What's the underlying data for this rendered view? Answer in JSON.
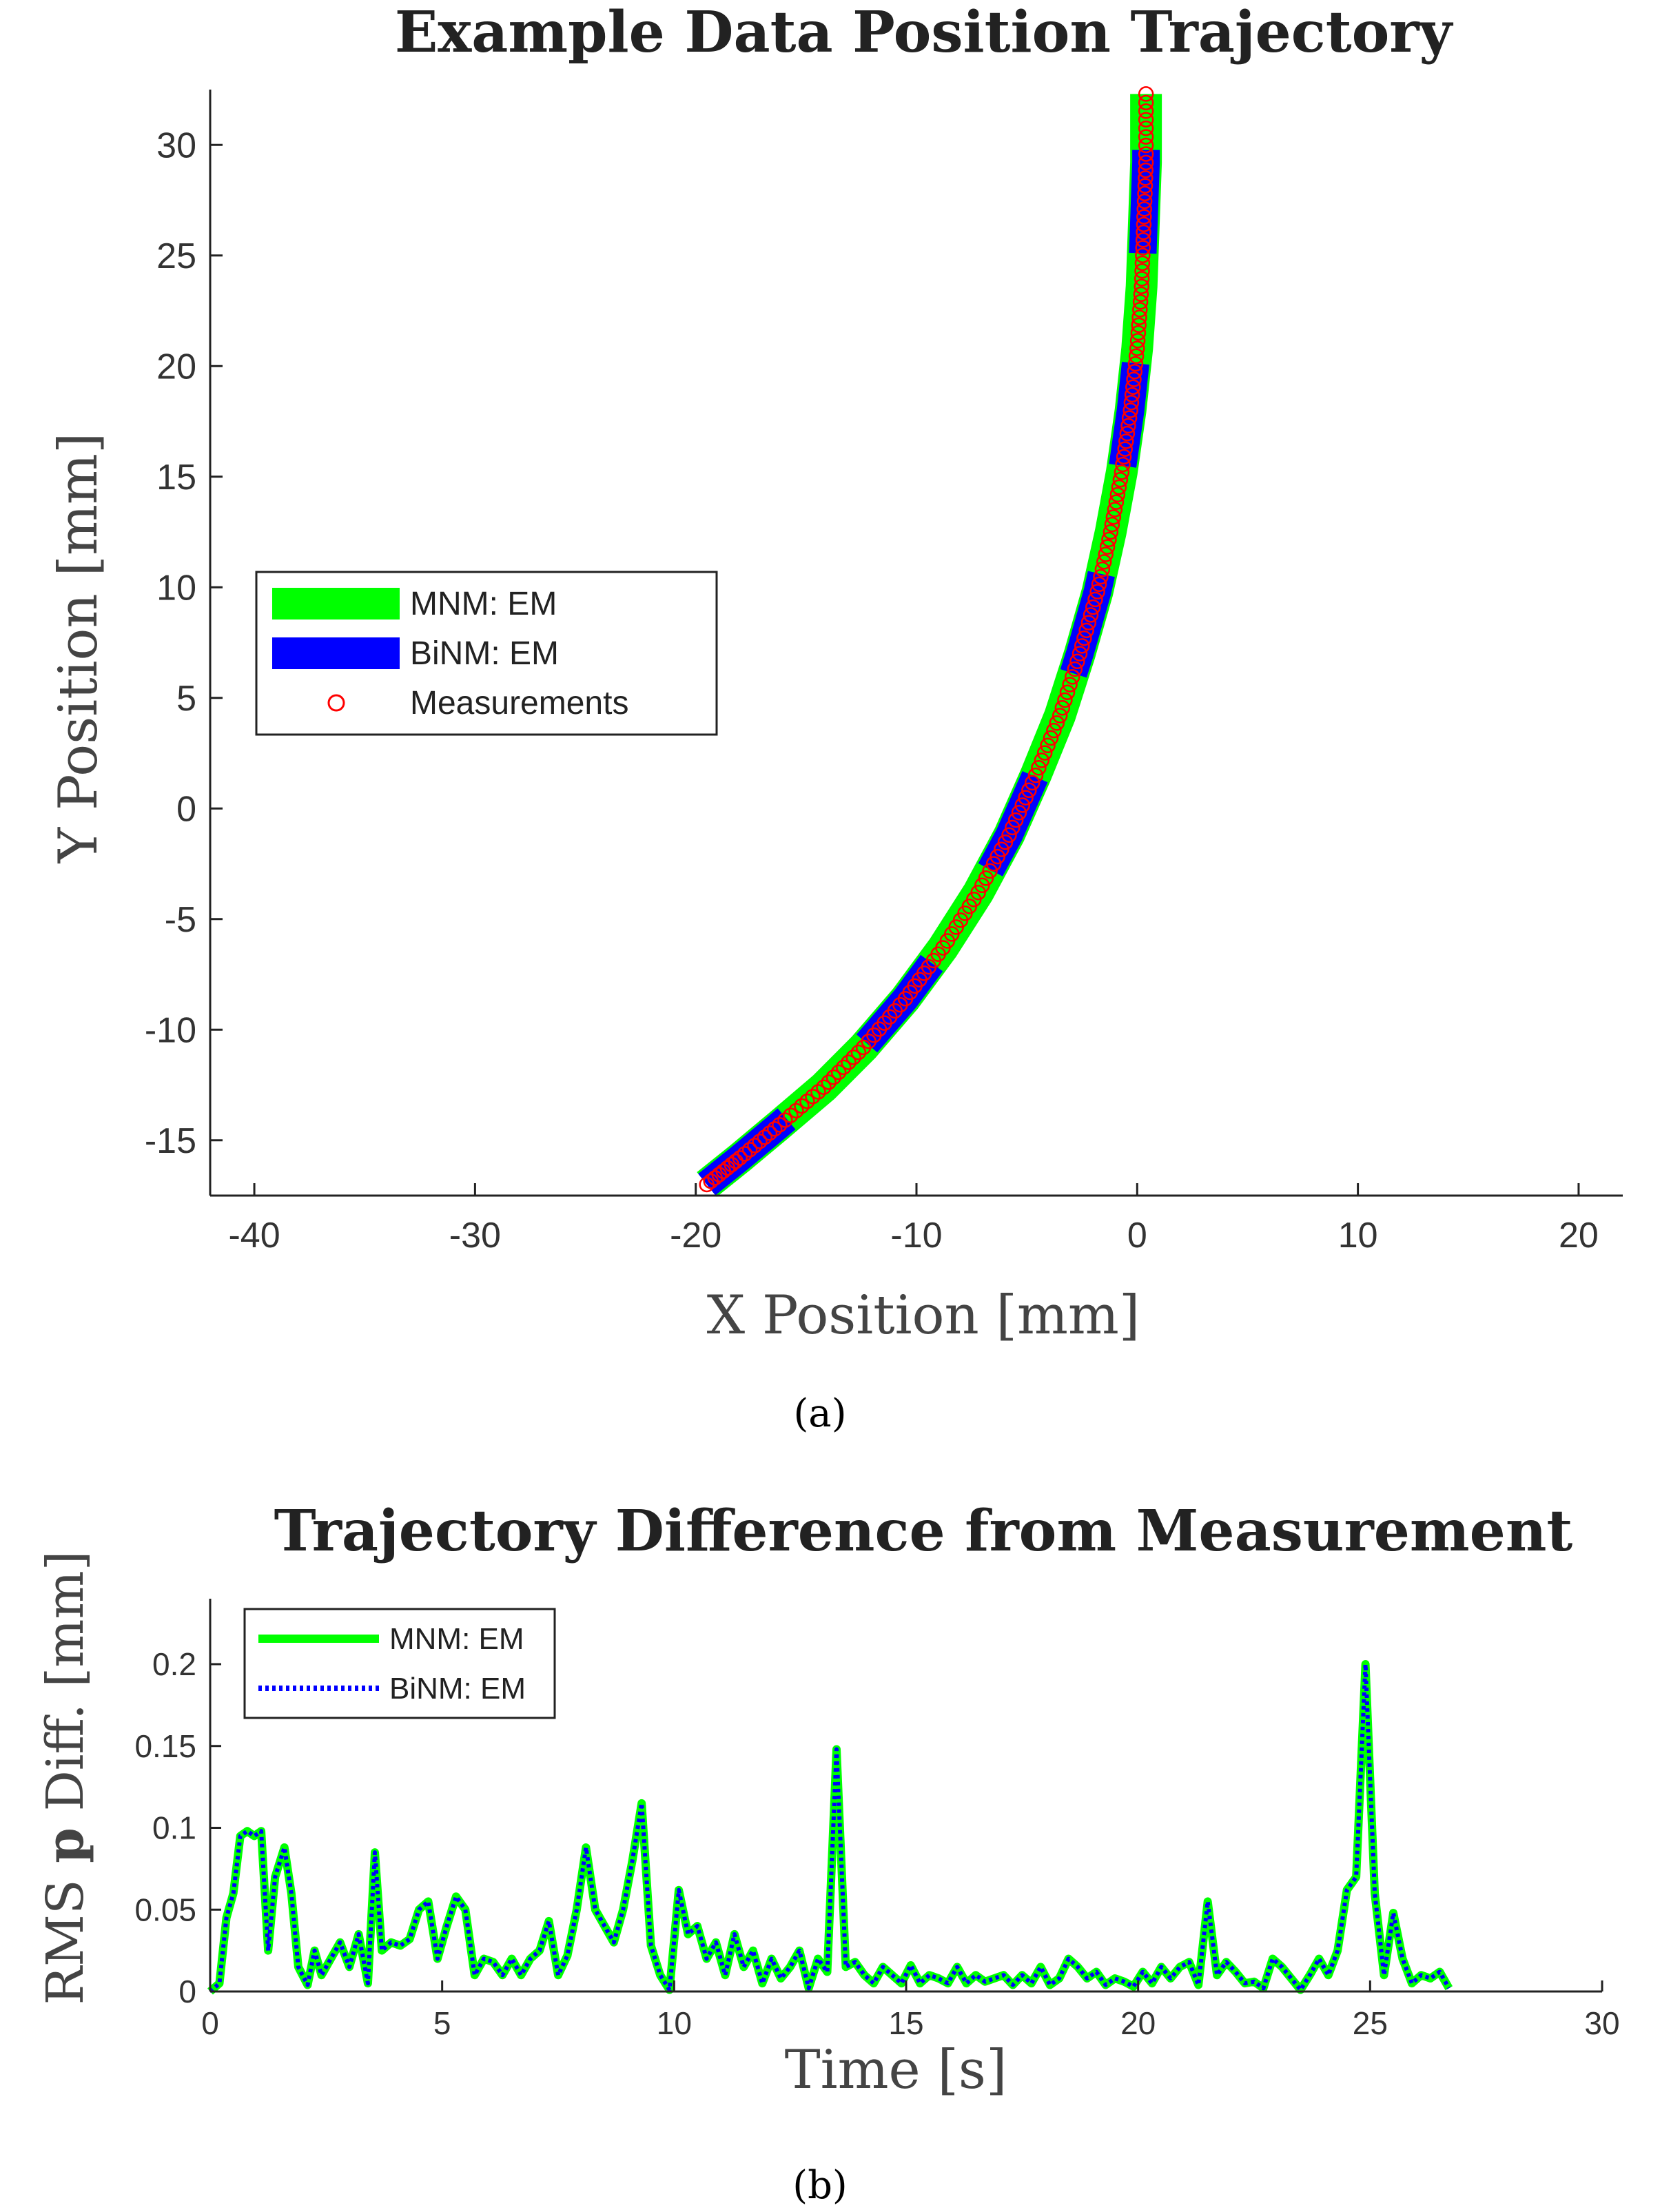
{
  "chart_data": [
    {
      "id": "a",
      "type": "line",
      "title": "Example Data Position Trajectory",
      "xlabel": "X Position [mm]",
      "ylabel": "Y Position [mm]",
      "xlim": [
        -42,
        22
      ],
      "ylim": [
        -17.5,
        32.5
      ],
      "xticks": [
        -40,
        -30,
        -20,
        -10,
        0,
        10,
        20
      ],
      "yticks": [
        -15,
        -10,
        -5,
        0,
        5,
        10,
        15,
        20,
        25,
        30
      ],
      "caption": "(a)",
      "legend_position": "center-left",
      "series": [
        {
          "name": "MNM: EM",
          "color": "#00ff00",
          "style": "thick-solid"
        },
        {
          "name": "BiNM: EM",
          "color": "#0000ff",
          "style": "thick-dashed"
        },
        {
          "name": "Measurements",
          "color": "#ff0000",
          "style": "circle-markers"
        }
      ],
      "trajectory": {
        "x": [
          -19.5,
          -18.0,
          -16.2,
          -14.2,
          -12.4,
          -10.5,
          -8.8,
          -7.2,
          -5.8,
          -4.6,
          -3.5,
          -2.6,
          -1.8,
          -1.2,
          -0.7,
          -0.3,
          0.0,
          0.2,
          0.3,
          0.4,
          0.4
        ],
        "y": [
          -17.0,
          -15.8,
          -14.3,
          -12.6,
          -10.8,
          -8.6,
          -6.3,
          -3.8,
          -1.2,
          1.5,
          4.2,
          7.0,
          9.8,
          12.5,
          15.2,
          18.0,
          20.8,
          23.6,
          26.4,
          29.2,
          32.3
        ]
      }
    },
    {
      "id": "b",
      "type": "line",
      "title": "Trajectory Difference from Measurement",
      "xlabel": "Time [s]",
      "ylabel_parts": [
        "RMS ",
        "p",
        " Diff. [mm]"
      ],
      "xlim": [
        0,
        30
      ],
      "ylim": [
        0,
        0.24
      ],
      "xticks": [
        0,
        5,
        10,
        15,
        20,
        25,
        30
      ],
      "yticks": [
        0,
        0.05,
        0.1,
        0.15,
        0.2
      ],
      "ytick_labels": [
        "0",
        "0.05",
        "0.1",
        "0.15",
        "0.2"
      ],
      "caption": "(b)",
      "legend_position": "top-left",
      "series": [
        {
          "name": "MNM: EM",
          "color": "#00ff00",
          "style": "solid"
        },
        {
          "name": "BiNM: EM",
          "color": "#0000ff",
          "style": "dotted"
        }
      ],
      "x": [
        0.0,
        0.2,
        0.35,
        0.5,
        0.65,
        0.8,
        0.95,
        1.1,
        1.25,
        1.4,
        1.6,
        1.75,
        1.9,
        2.1,
        2.25,
        2.4,
        2.6,
        2.8,
        3.0,
        3.2,
        3.4,
        3.55,
        3.7,
        3.9,
        4.1,
        4.3,
        4.5,
        4.7,
        4.9,
        5.1,
        5.3,
        5.5,
        5.7,
        5.9,
        6.1,
        6.3,
        6.5,
        6.7,
        6.9,
        7.1,
        7.3,
        7.5,
        7.7,
        7.9,
        8.1,
        8.3,
        8.5,
        8.7,
        8.9,
        9.1,
        9.3,
        9.5,
        9.7,
        9.9,
        10.1,
        10.3,
        10.5,
        10.7,
        10.9,
        11.1,
        11.3,
        11.5,
        11.7,
        11.9,
        12.1,
        12.3,
        12.5,
        12.7,
        12.9,
        13.1,
        13.3,
        13.5,
        13.7,
        13.9,
        14.1,
        14.3,
        14.5,
        14.7,
        14.9,
        15.1,
        15.3,
        15.5,
        15.7,
        15.9,
        16.1,
        16.3,
        16.5,
        16.7,
        16.9,
        17.1,
        17.3,
        17.5,
        17.7,
        17.9,
        18.1,
        18.3,
        18.5,
        18.7,
        18.9,
        19.1,
        19.3,
        19.5,
        19.7,
        19.9,
        20.1,
        20.3,
        20.5,
        20.7,
        20.9,
        21.1,
        21.3,
        21.5,
        21.7,
        21.9,
        22.1,
        22.3,
        22.5,
        22.7,
        22.9,
        23.1,
        23.3,
        23.5,
        23.7,
        23.9,
        24.1,
        24.3,
        24.5,
        24.7,
        24.9,
        25.1,
        25.3,
        25.5,
        25.7,
        25.9,
        26.1,
        26.3,
        26.5,
        26.7
      ],
      "y": [
        0.0,
        0.005,
        0.045,
        0.06,
        0.095,
        0.098,
        0.095,
        0.098,
        0.025,
        0.07,
        0.088,
        0.06,
        0.015,
        0.004,
        0.025,
        0.01,
        0.02,
        0.03,
        0.015,
        0.035,
        0.005,
        0.085,
        0.025,
        0.03,
        0.028,
        0.032,
        0.05,
        0.055,
        0.02,
        0.04,
        0.058,
        0.05,
        0.01,
        0.02,
        0.018,
        0.01,
        0.02,
        0.01,
        0.02,
        0.025,
        0.043,
        0.01,
        0.022,
        0.05,
        0.088,
        0.05,
        0.04,
        0.03,
        0.05,
        0.08,
        0.115,
        0.028,
        0.01,
        0.001,
        0.062,
        0.035,
        0.04,
        0.02,
        0.03,
        0.01,
        0.035,
        0.015,
        0.025,
        0.005,
        0.02,
        0.008,
        0.015,
        0.025,
        0.002,
        0.02,
        0.012,
        0.148,
        0.015,
        0.018,
        0.01,
        0.005,
        0.015,
        0.01,
        0.005,
        0.016,
        0.005,
        0.01,
        0.008,
        0.005,
        0.015,
        0.005,
        0.01,
        0.006,
        0.008,
        0.01,
        0.004,
        0.01,
        0.005,
        0.015,
        0.004,
        0.008,
        0.02,
        0.015,
        0.008,
        0.012,
        0.004,
        0.008,
        0.006,
        0.003,
        0.012,
        0.005,
        0.015,
        0.008,
        0.015,
        0.018,
        0.004,
        0.055,
        0.01,
        0.018,
        0.012,
        0.005,
        0.006,
        0.002,
        0.02,
        0.015,
        0.008,
        0.001,
        0.01,
        0.02,
        0.01,
        0.025,
        0.062,
        0.07,
        0.2,
        0.06,
        0.01,
        0.048,
        0.02,
        0.005,
        0.01,
        0.008,
        0.012,
        0.002
      ]
    }
  ]
}
